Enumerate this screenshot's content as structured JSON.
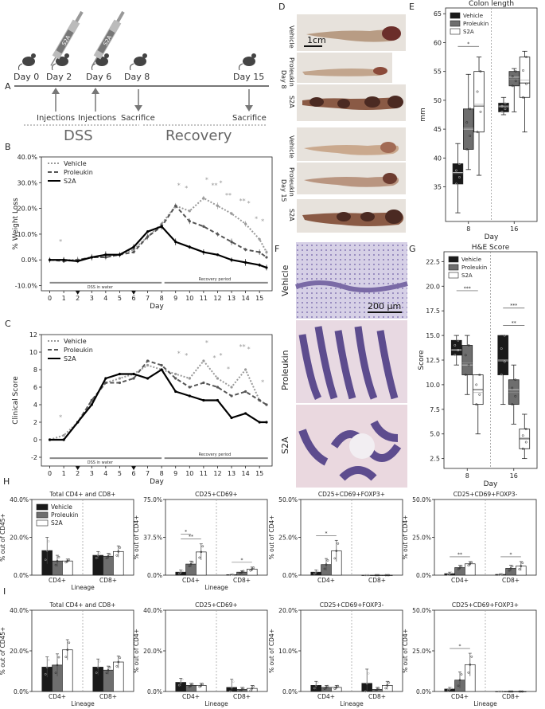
{
  "panel_letters": {
    "A": "A",
    "B": "B",
    "C": "C",
    "D": "D",
    "E": "E",
    "F": "F",
    "G": "G",
    "H": "H",
    "I": "I"
  },
  "timeline": {
    "days": [
      "Day 0",
      "Day 2",
      "Day 6",
      "Day 8",
      "Day 15"
    ],
    "syringe_label": "S2A",
    "events": {
      "inj1": "Injections",
      "inj2": "Injections",
      "sac1": "Sacrifice",
      "sac2": "Sacrifice"
    },
    "phases": {
      "dss": "DSS",
      "recovery": "Recovery"
    }
  },
  "colors": {
    "vehicle": "#1a1a1a",
    "proleukin": "#6e6e6e",
    "s2a": "#ffffff",
    "vehicle_line": "#9a9a9a",
    "proleukin_line": "#555555",
    "s2a_line": "#000000"
  },
  "legend": {
    "vehicle": "Vehicle",
    "proleukin": "Proleukin",
    "s2a": "S2A"
  },
  "photos": {
    "row_labels": [
      "Vehicle",
      "Proleukin",
      "S2A",
      "Vehicle",
      "Proleukin",
      "S2A"
    ],
    "day_labels": [
      "Day 8",
      "Day 15"
    ],
    "scale": "1cm"
  },
  "histology": {
    "labels": [
      "Vehicle",
      "Proleukin",
      "S2A"
    ],
    "scale": "200 μm"
  },
  "chart_data": [
    {
      "id": "B",
      "type": "line",
      "title": "",
      "xlabel": "Day",
      "ylabel": "% Weight Loss",
      "x": [
        0,
        1,
        2,
        3,
        4,
        5,
        6,
        7,
        8,
        9,
        10,
        11,
        12,
        13,
        14,
        15,
        15.5
      ],
      "xticks": [
        "0",
        "1",
        "2",
        "3",
        "4",
        "5",
        "6",
        "7",
        "8",
        "9",
        "10",
        "11",
        "12",
        "13",
        "14",
        "15"
      ],
      "yticks": [
        "-10.0%",
        "0.0%",
        "10.0%",
        "20.0%",
        "30.0%",
        "40.0%"
      ],
      "ylim": [
        -12,
        40
      ],
      "series": [
        {
          "name": "Vehicle",
          "values": [
            0,
            0,
            0,
            1,
            1,
            2,
            4,
            9,
            14,
            21,
            19,
            24,
            21,
            18,
            14,
            8,
            3
          ]
        },
        {
          "name": "Proleukin",
          "values": [
            0,
            -0.5,
            0,
            1,
            1,
            2,
            3,
            9,
            13,
            21,
            15,
            13,
            10,
            7,
            4,
            3,
            1
          ]
        },
        {
          "name": "S2A",
          "values": [
            0,
            0,
            -0.5,
            1,
            2,
            2,
            5,
            11,
            13,
            7,
            5,
            3,
            2,
            0,
            -1,
            -2,
            -3
          ]
        }
      ],
      "annotations": {
        "dss": "DSS in water",
        "recovery": "Recovery period",
        "markers": [
          "*",
          "*",
          "*",
          "*",
          "**",
          "*",
          "**",
          "*",
          "**",
          "*",
          "*"
        ]
      }
    },
    {
      "id": "C",
      "type": "line",
      "xlabel": "Day",
      "ylabel": "Clinical Score",
      "x": [
        0,
        1,
        2,
        3,
        4,
        5,
        6,
        7,
        8,
        9,
        10,
        11,
        12,
        13,
        14,
        15,
        15.5
      ],
      "xticks": [
        "0",
        "1",
        "2",
        "3",
        "4",
        "5",
        "6",
        "7",
        "8",
        "9",
        "10",
        "11",
        "12",
        "13",
        "14",
        "15"
      ],
      "yticks": [
        "-2",
        "0",
        "2",
        "4",
        "6",
        "8",
        "10",
        "12"
      ],
      "ylim": [
        -3,
        12
      ],
      "series": [
        {
          "name": "Vehicle",
          "values": [
            0,
            0.5,
            2,
            4.5,
            6.5,
            7,
            7.5,
            8.5,
            8,
            7.5,
            7,
            9,
            7,
            6,
            8,
            4.5,
            4
          ]
        },
        {
          "name": "Proleukin",
          "values": [
            0,
            0,
            2,
            4.5,
            6.5,
            6.5,
            7,
            9,
            8.5,
            7,
            6,
            6.5,
            6,
            5,
            5.5,
            4.5,
            4
          ]
        },
        {
          "name": "S2A",
          "values": [
            0,
            0,
            2,
            4,
            7,
            7.5,
            7.5,
            7,
            8,
            5.5,
            5,
            4.5,
            4.5,
            2.5,
            3,
            2,
            2
          ]
        }
      ],
      "annotations": {
        "dss": "DSS in water",
        "recovery": "Recovery period",
        "markers": [
          "*",
          "*",
          "*",
          "*",
          "*",
          "*",
          "*",
          "*",
          "**",
          "*"
        ]
      }
    },
    {
      "id": "E",
      "type": "box",
      "title": "Colon length",
      "xlabel": "Day",
      "ylabel": "mm",
      "categories": [
        "8",
        "16"
      ],
      "yticks": [
        "35",
        "40",
        "45",
        "50",
        "55",
        "60",
        "65"
      ],
      "ylim": [
        29,
        66
      ],
      "boxes": [
        {
          "group": "8",
          "name": "Vehicle",
          "min": 30.5,
          "q1": 35.5,
          "med": 37.5,
          "q3": 39,
          "max": 42.5,
          "mean": 37.3
        },
        {
          "group": "8",
          "name": "Proleukin",
          "min": 38,
          "q1": 41.5,
          "med": 45,
          "q3": 48.5,
          "max": 54.5,
          "mean": 45.2
        },
        {
          "group": "8",
          "name": "S2A",
          "min": 37,
          "q1": 44.5,
          "med": 49,
          "q3": 55,
          "max": 57.5,
          "mean": 49.3
        },
        {
          "group": "16",
          "name": "Vehicle",
          "min": 47.5,
          "q1": 48,
          "med": 49,
          "q3": 49.5,
          "max": 50.5,
          "mean": 48.8
        },
        {
          "group": "16",
          "name": "Proleukin",
          "min": 48,
          "q1": 52.5,
          "med": 54,
          "q3": 55,
          "max": 55.5,
          "mean": 53.6
        },
        {
          "group": "16",
          "name": "S2A",
          "min": 44.5,
          "q1": 50.5,
          "med": 53,
          "q3": 57.5,
          "max": 58.5,
          "mean": 53.5
        }
      ],
      "sig": [
        "*"
      ]
    },
    {
      "id": "G",
      "type": "box",
      "title": "H&E Score",
      "xlabel": "Day",
      "ylabel": "Score",
      "categories": [
        "8",
        "16"
      ],
      "yticks": [
        "2.5",
        "5.0",
        "7.5",
        "10.0",
        "12.5",
        "15.0",
        "17.5",
        "20.0",
        "22.5"
      ],
      "ylim": [
        1.5,
        23.5
      ],
      "boxes": [
        {
          "group": "8",
          "name": "Vehicle",
          "min": 12,
          "q1": 13,
          "med": 13.5,
          "q3": 14.5,
          "max": 15,
          "mean": 13.6
        },
        {
          "group": "8",
          "name": "Proleukin",
          "min": 9,
          "q1": 11,
          "med": 12,
          "q3": 14,
          "max": 15,
          "mean": 12.2
        },
        {
          "group": "8",
          "name": "S2A",
          "min": 5,
          "q1": 8,
          "med": 9.5,
          "q3": 11,
          "max": 11,
          "mean": 9.2
        },
        {
          "group": "16",
          "name": "Vehicle",
          "min": 8,
          "q1": 11,
          "med": 12.5,
          "q3": 15,
          "max": 15,
          "mean": 12.4
        },
        {
          "group": "16",
          "name": "Proleukin",
          "min": 6,
          "q1": 8,
          "med": 9.5,
          "q3": 10.5,
          "max": 12,
          "mean": 9.2
        },
        {
          "group": "16",
          "name": "S2A",
          "min": 2.5,
          "q1": 3.5,
          "med": 4.5,
          "q3": 5.5,
          "max": 7,
          "mean": 4.6
        }
      ],
      "sig": [
        "***",
        "***",
        "**"
      ]
    },
    {
      "id": "H1",
      "type": "bar",
      "title": "Total CD4+ and CD8+",
      "ylabel": "% out of CD45+",
      "xlabel": "Lineage",
      "categories": [
        "CD4+",
        "CD8+"
      ],
      "yticks": [
        "0.0%",
        "20.0%",
        "40.0%"
      ],
      "ylim": [
        0,
        40
      ],
      "series": [
        {
          "name": "Vehicle",
          "values": [
            13,
            10.5
          ]
        },
        {
          "name": "Proleukin",
          "values": [
            7.5,
            10
          ]
        },
        {
          "name": "S2A",
          "values": [
            7.5,
            12.5
          ]
        }
      ],
      "errors": [
        [
          7,
          2
        ],
        [
          3,
          1.5
        ],
        [
          1,
          3
        ]
      ],
      "sig": []
    },
    {
      "id": "H2",
      "type": "bar",
      "title": "CD25+CD69+",
      "ylabel": "% out of CD4+",
      "xlabel": "Lineage",
      "categories": [
        "CD4+",
        "CD8+"
      ],
      "yticks": [
        "0.0%",
        "37.5%",
        "75.0%"
      ],
      "ylim": [
        0,
        75
      ],
      "series": [
        {
          "name": "Vehicle",
          "values": [
            3,
            0.5
          ]
        },
        {
          "name": "Proleukin",
          "values": [
            11,
            3
          ]
        },
        {
          "name": "S2A",
          "values": [
            23,
            6
          ]
        }
      ],
      "errors": [
        [
          2,
          0.5
        ],
        [
          3,
          1.5
        ],
        [
          8,
          2
        ]
      ],
      "sig": [
        "**",
        "*",
        "*"
      ]
    },
    {
      "id": "H3",
      "type": "bar",
      "title": "CD25+CD69+FOXP3+",
      "ylabel": "% out of CD4+",
      "xlabel": "",
      "categories": [
        "CD4+",
        "CD8+"
      ],
      "yticks": [
        "0.0%",
        "25.0%",
        "50.0%"
      ],
      "ylim": [
        0,
        50
      ],
      "series": [
        {
          "name": "Vehicle",
          "values": [
            2,
            0
          ]
        },
        {
          "name": "Proleukin",
          "values": [
            7,
            0
          ]
        },
        {
          "name": "S2A",
          "values": [
            16,
            0
          ]
        }
      ],
      "errors": [
        [
          1.5,
          0
        ],
        [
          4,
          0
        ],
        [
          7,
          0
        ]
      ],
      "sig": [
        "*"
      ]
    },
    {
      "id": "H4",
      "type": "bar",
      "title": "CD25+CD69+FOXP3-",
      "ylabel": "% out of CD4+",
      "xlabel": "",
      "categories": [
        "CD4+",
        "CD8+"
      ],
      "yticks": [
        "0.0%",
        "25.0%",
        "50.0%"
      ],
      "ylim": [
        0,
        50
      ],
      "series": [
        {
          "name": "Vehicle",
          "values": [
            1,
            0.5
          ]
        },
        {
          "name": "Proleukin",
          "values": [
            5,
            4.5
          ]
        },
        {
          "name": "S2A",
          "values": [
            7.5,
            6
          ]
        }
      ],
      "errors": [
        [
          1,
          0.5
        ],
        [
          1.5,
          2
        ],
        [
          1.5,
          3
        ]
      ],
      "sig": [
        "**",
        "*"
      ]
    },
    {
      "id": "I1",
      "type": "bar",
      "title": "Total CD4+ and CD8+",
      "ylabel": "% out of CD45+",
      "xlabel": "Lineage",
      "categories": [
        "CD4+",
        "CD8+"
      ],
      "yticks": [
        "0.0%",
        "20.0%",
        "40.0%"
      ],
      "ylim": [
        0,
        40
      ],
      "series": [
        {
          "name": "Vehicle",
          "values": [
            12,
            12
          ]
        },
        {
          "name": "Proleukin",
          "values": [
            13,
            10.5
          ]
        },
        {
          "name": "S2A",
          "values": [
            20.5,
            14.5
          ]
        }
      ],
      "errors": [
        [
          5,
          4
        ],
        [
          5.5,
          2
        ],
        [
          5,
          3
        ]
      ],
      "sig": []
    },
    {
      "id": "I2",
      "type": "bar",
      "title": "CD25+CD69+",
      "ylabel": "% out of CD4+",
      "xlabel": "Lineage",
      "categories": [
        "CD4+",
        "CD8+"
      ],
      "yticks": [
        "0.0%",
        "20.0%",
        "40.0%"
      ],
      "ylim": [
        0,
        40
      ],
      "series": [
        {
          "name": "Vehicle",
          "values": [
            4.5,
            2
          ]
        },
        {
          "name": "Proleukin",
          "values": [
            3,
            1
          ]
        },
        {
          "name": "S2A",
          "values": [
            3,
            1.5
          ]
        }
      ],
      "errors": [
        [
          2,
          4
        ],
        [
          1,
          1
        ],
        [
          1,
          1.5
        ]
      ],
      "sig": []
    },
    {
      "id": "I3",
      "type": "bar",
      "title": "CD25+CD69+FOXP3-",
      "ylabel": "% out of CD4+",
      "xlabel": "Lineage",
      "categories": [
        "CD4+",
        "CD8+"
      ],
      "yticks": [
        "0.0%",
        "10.0%",
        "20.0%"
      ],
      "ylim": [
        0,
        20
      ],
      "series": [
        {
          "name": "Vehicle",
          "values": [
            1.5,
            2
          ]
        },
        {
          "name": "Proleukin",
          "values": [
            1,
            0.5
          ]
        },
        {
          "name": "S2A",
          "values": [
            1,
            1.5
          ]
        }
      ],
      "errors": [
        [
          1,
          3.5
        ],
        [
          0.5,
          0.5
        ],
        [
          0.5,
          1
        ]
      ],
      "sig": []
    },
    {
      "id": "I4",
      "type": "bar",
      "title": "CD25+CD69+FOXP3+",
      "ylabel": "% out of CD4+",
      "xlabel": "Lineage",
      "categories": [
        "CD4+",
        "CD8+"
      ],
      "yticks": [
        "0.0%",
        "25.0%",
        "50.0%"
      ],
      "ylim": [
        0,
        50
      ],
      "series": [
        {
          "name": "Vehicle",
          "values": [
            1.5,
            0
          ]
        },
        {
          "name": "Proleukin",
          "values": [
            7,
            0
          ]
        },
        {
          "name": "S2A",
          "values": [
            16.5,
            0
          ]
        }
      ],
      "errors": [
        [
          1,
          0
        ],
        [
          5,
          0
        ],
        [
          7,
          0
        ]
      ],
      "sig": [
        "*"
      ]
    }
  ]
}
